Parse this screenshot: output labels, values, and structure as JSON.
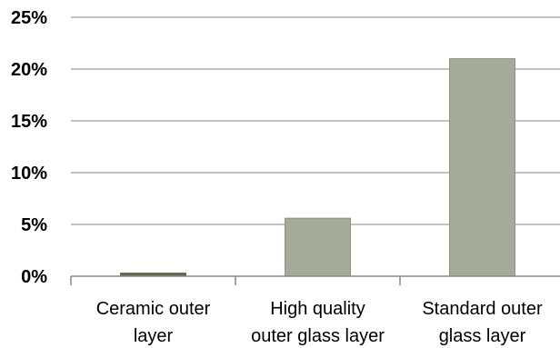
{
  "chart_data": {
    "type": "bar",
    "categories": [
      [
        "Ceramic outer",
        "layer"
      ],
      [
        "High quality",
        "outer glass  layer"
      ],
      [
        "Standard outer",
        "glass layer"
      ]
    ],
    "values": [
      0.3,
      5.6,
      21.0
    ],
    "ylim": [
      0,
      25
    ],
    "y_ticks": [
      0,
      5,
      10,
      15,
      20,
      25
    ],
    "y_tick_labels": [
      "0%",
      "5%",
      "10%",
      "15%",
      "20%",
      "25%"
    ],
    "grid": true,
    "legend": "none",
    "colors": {
      "bar": "#a5aa99",
      "bar_outline": "#8d9181",
      "first_bar": "#5c6a4a",
      "grid": "#878787",
      "axis": "#878787"
    }
  }
}
